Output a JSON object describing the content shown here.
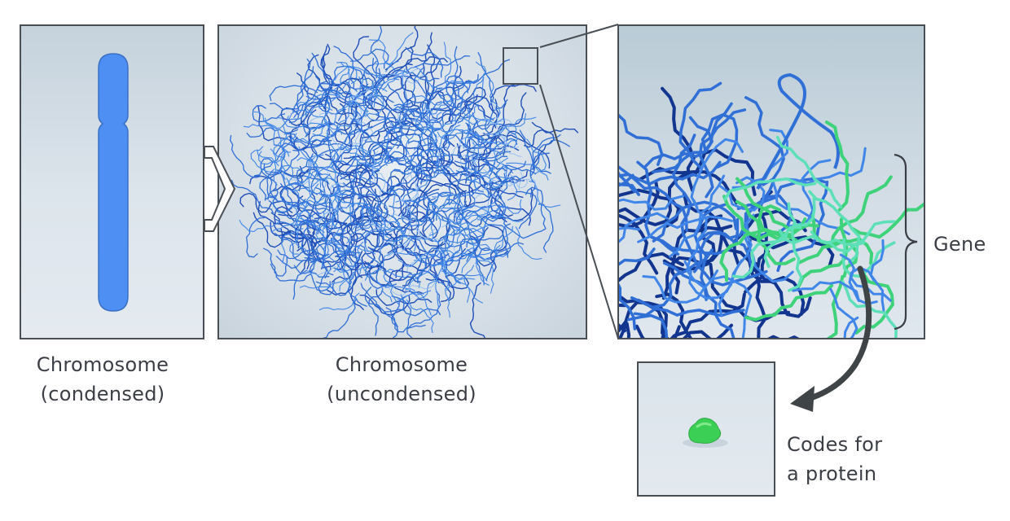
{
  "labels": {
    "condensed_line1": "Chromosome",
    "condensed_line2": "(condensed)",
    "uncondensed_line1": "Chromosome",
    "uncondensed_line2": "(uncondensed)",
    "gene": "Gene",
    "protein_line1": "Codes for",
    "protein_line2": "a protein"
  },
  "colors": {
    "chromosome": "#4d8ff2",
    "dna_dark": "#1f4fb8",
    "dna_mid": "#2f6fd6",
    "dna_light": "#3f86e8",
    "gene": "#3ed27a",
    "gene_light": "#5de0b8",
    "protein": "#3ccf55",
    "frame": "#4a4f55",
    "arrow": "#3f4447"
  },
  "icons": {
    "chromosome": "chromosome-rod-icon",
    "dna_tangle": "dna-tangle-icon",
    "protein": "protein-blob-icon"
  }
}
